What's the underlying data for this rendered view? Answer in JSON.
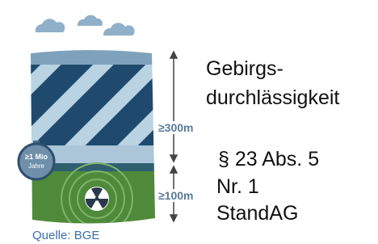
{
  "heading": {
    "line1": "Gebirgs-",
    "line2": "durchlässigkeit"
  },
  "depths": {
    "upper": "≥300m",
    "lower": "≥100m"
  },
  "timer": {
    "line1": "≥1 Mio",
    "line2": "Jahre"
  },
  "law": {
    "line1": "§ 23 Abs. 5",
    "line2": "Nr. 1",
    "line3": "StandAG"
  },
  "source": "Quelle: BGE"
}
